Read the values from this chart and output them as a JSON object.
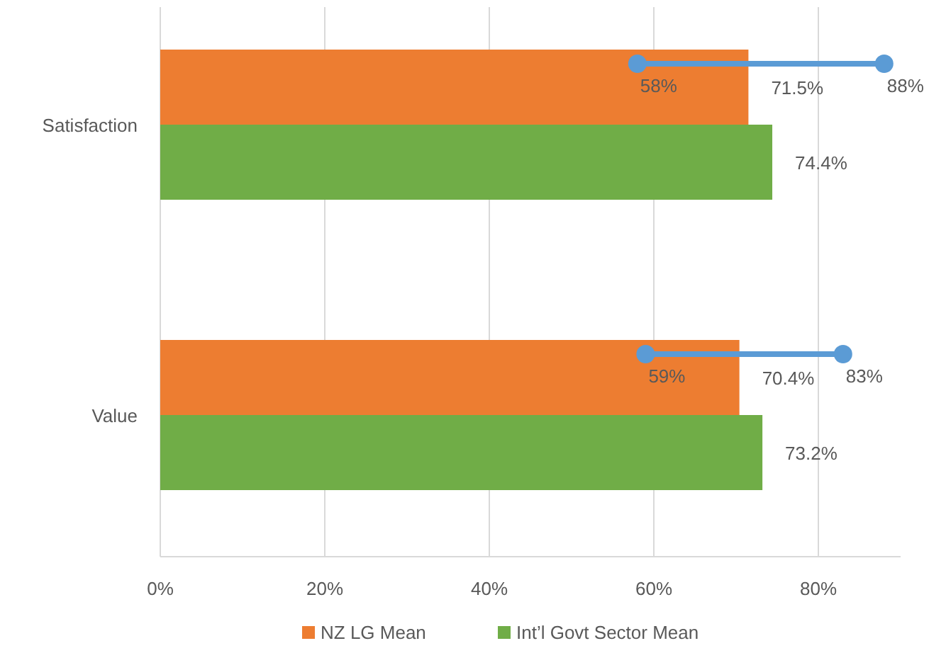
{
  "chart_data": {
    "type": "bar",
    "orientation": "horizontal",
    "categories": [
      "Satisfaction",
      "Value"
    ],
    "series": [
      {
        "name": "NZ LG Mean",
        "color": "#ed7d31",
        "values": [
          71.5,
          70.4
        ],
        "value_labels": [
          "71.5%",
          "70.4%"
        ]
      },
      {
        "name": "Int’l Govt Sector Mean",
        "color": "#70ad47",
        "values": [
          74.4,
          73.2
        ],
        "value_labels": [
          "74.4%",
          "73.2%"
        ]
      },
      {
        "type": "scatter",
        "color": "#5b9bd5",
        "values": [
          58,
          59
        ],
        "value_labels": [
          "58%",
          "59%"
        ]
      },
      {
        "type": "scatter",
        "color": "#5b9bd5",
        "values": [
          88,
          83
        ],
        "value_labels": [
          "88%",
          "83%"
        ]
      }
    ],
    "xlim": [
      0,
      90
    ],
    "xticks": [
      {
        "value": 0,
        "label": "0%"
      },
      {
        "value": 20,
        "label": "20%"
      },
      {
        "value": 40,
        "label": "40%"
      },
      {
        "value": 60,
        "label": "60%"
      },
      {
        "value": 80,
        "label": "80%"
      }
    ],
    "grid": "x",
    "legend": "bottom",
    "marker": "circle"
  }
}
